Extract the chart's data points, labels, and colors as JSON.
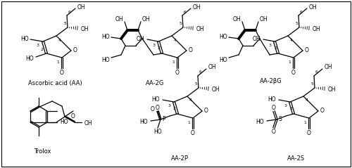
{
  "labels": [
    "Ascorbic acid (AA)",
    "AA-2G",
    "AA-2βG",
    "Trolox",
    "AA-2P",
    "AA-2S"
  ],
  "background_color": "#ffffff",
  "figsize": [
    5.0,
    2.39
  ],
  "dpi": 100,
  "border_color": "#000000",
  "font_family": "DejaVu Sans"
}
